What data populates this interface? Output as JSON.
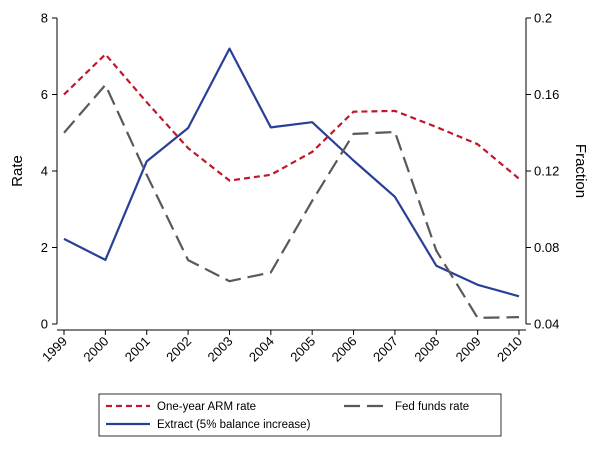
{
  "chart_data": {
    "type": "line",
    "categories": [
      "1999",
      "2000",
      "2001",
      "2002",
      "2003",
      "2004",
      "2005",
      "2006",
      "2007",
      "2008",
      "2009",
      "2010"
    ],
    "ylabel": "Rate",
    "y2label": "Fraction",
    "ylim": [
      0,
      8
    ],
    "y2lim": [
      0.04,
      0.2
    ],
    "yticks": [
      "0",
      "2",
      "4",
      "6",
      "8"
    ],
    "y2ticks": [
      "0.04",
      "0.08",
      "0.12",
      "0.16",
      "0.2"
    ],
    "legend_position": "bottom",
    "grid": false,
    "series": [
      {
        "name": "One-year ARM rate",
        "axis": "left",
        "color": "#c0172a",
        "dash": "dashed",
        "values": [
          6.0,
          7.05,
          5.8,
          4.6,
          3.75,
          3.9,
          4.5,
          5.55,
          5.57,
          5.15,
          4.7,
          3.8
        ]
      },
      {
        "name": "Fed funds rate",
        "axis": "left",
        "color": "#595959",
        "dash": "longdash",
        "values": [
          5.0,
          6.25,
          3.9,
          1.67,
          1.12,
          1.35,
          3.22,
          4.97,
          5.02,
          1.92,
          0.16,
          0.18
        ]
      },
      {
        "name": "Extract (5% balance increase)",
        "axis": "right",
        "color": "#2a3f96",
        "dash": "solid",
        "values": [
          0.0845,
          0.0735,
          0.125,
          0.1425,
          0.184,
          0.1428,
          0.1455,
          0.1255,
          0.1065,
          0.0705,
          0.0605,
          0.0545
        ]
      }
    ]
  }
}
